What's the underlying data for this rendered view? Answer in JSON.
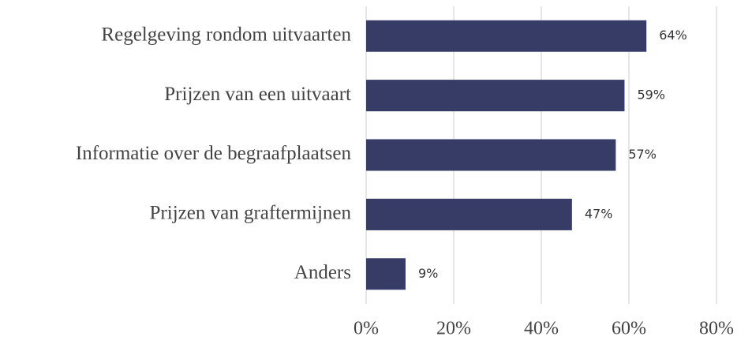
{
  "chart_data": {
    "type": "bar",
    "orientation": "horizontal",
    "categories": [
      "Regelgeving rondom uitvaarten",
      "Prijzen van een uitvaart",
      "Informatie over de begraafplaatsen",
      "Prijzen van graftermijnen",
      "Anders"
    ],
    "values": [
      64,
      59,
      57,
      47,
      9
    ],
    "value_labels": [
      "64%",
      "59%",
      "57%",
      "47%",
      "9%"
    ],
    "color": "#363c66",
    "xlim": [
      0,
      80
    ],
    "xticks": [
      {
        "value": 0,
        "label": "0%"
      },
      {
        "value": 20,
        "label": "20%"
      },
      {
        "value": 40,
        "label": "40%"
      },
      {
        "value": 60,
        "label": "60%"
      },
      {
        "value": 80,
        "label": "80%"
      }
    ],
    "grid": true
  }
}
